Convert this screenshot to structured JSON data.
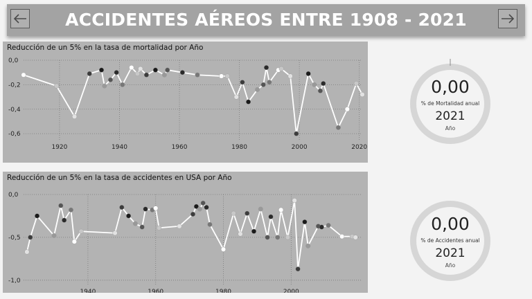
{
  "header": {
    "title": "ACCIDENTES AÉREOS ENTRE 1908 - 2021",
    "prev_icon": "arrow-left-icon",
    "next_icon": "arrow-right-icon"
  },
  "chart_data": [
    {
      "type": "line",
      "title": "Reducción de un 5% en la tasa de mortalidad por Año",
      "xlabel": "",
      "ylabel": "",
      "xlim": [
        1908,
        2021
      ],
      "ylim": [
        -0.65,
        0.0
      ],
      "xticks": [
        1920,
        1940,
        1960,
        1980,
        2000,
        2020
      ],
      "yticks": [
        0.0,
        -0.2,
        -0.4,
        -0.6
      ],
      "ytick_labels": [
        "0,0",
        "-0,2",
        "-0,4",
        "-0,6"
      ],
      "grid": true,
      "x": [
        1908,
        1919,
        1925,
        1930,
        1934,
        1935,
        1937,
        1939,
        1941,
        1944,
        1946,
        1947,
        1949,
        1952,
        1955,
        1956,
        1961,
        1966,
        1974,
        1976,
        1979,
        1981,
        1983,
        1986,
        1988,
        1989,
        1990,
        1993,
        1994,
        1997,
        1999,
        2003,
        2005,
        2007,
        2008,
        2013,
        2016,
        2019,
        2021
      ],
      "y": [
        -0.12,
        -0.21,
        -0.46,
        -0.11,
        -0.08,
        -0.21,
        -0.16,
        -0.1,
        -0.2,
        -0.06,
        -0.11,
        -0.07,
        -0.12,
        -0.08,
        -0.12,
        -0.08,
        -0.1,
        -0.12,
        -0.13,
        -0.13,
        -0.3,
        -0.18,
        -0.34,
        -0.24,
        -0.2,
        -0.06,
        -0.18,
        -0.08,
        -0.07,
        -0.13,
        -0.6,
        -0.11,
        -0.2,
        -0.25,
        -0.19,
        -0.55,
        -0.4,
        -0.19,
        -0.28
      ]
    },
    {
      "type": "line",
      "title": "Reducción de un 5% en la tasa de accidentes en USA por Año",
      "xlabel": "",
      "ylabel": "",
      "xlim": [
        1921,
        2021
      ],
      "ylim": [
        -1.05,
        0.0
      ],
      "xticks": [
        1940,
        1960,
        1980,
        2000
      ],
      "yticks": [
        0.0,
        -0.5,
        -1.0
      ],
      "ytick_labels": [
        "0,0",
        "-0,5",
        "-1,0"
      ],
      "grid": true,
      "x": [
        1922,
        1923,
        1925,
        1930,
        1932,
        1933,
        1935,
        1936,
        1938,
        1948,
        1950,
        1952,
        1954,
        1956,
        1957,
        1959,
        1960,
        1961,
        1967,
        1971,
        1972,
        1973,
        1974,
        1975,
        1976,
        1980,
        1983,
        1985,
        1987,
        1989,
        1991,
        1993,
        1994,
        1996,
        1997,
        1999,
        2001,
        2002,
        2004,
        2005,
        2008,
        2009,
        2011,
        2015,
        2018,
        2019
      ],
      "y": [
        -0.67,
        -0.5,
        -0.25,
        -0.48,
        -0.13,
        -0.3,
        -0.18,
        -0.55,
        -0.43,
        -0.45,
        -0.15,
        -0.25,
        -0.34,
        -0.38,
        -0.17,
        -0.18,
        -0.16,
        -0.39,
        -0.37,
        -0.23,
        -0.14,
        -0.17,
        -0.1,
        -0.15,
        -0.35,
        -0.64,
        -0.22,
        -0.46,
        -0.22,
        -0.43,
        -0.17,
        -0.5,
        -0.26,
        -0.5,
        -0.18,
        -0.5,
        -0.07,
        -0.87,
        -0.32,
        -0.6,
        -0.37,
        -0.38,
        -0.36,
        -0.49,
        -0.49,
        -0.5
      ]
    }
  ],
  "kpis": [
    {
      "value": "0,00",
      "label": "% de Mortalidad anual",
      "year": "2021",
      "year_label": "Año"
    },
    {
      "value": "0,00",
      "label": "% de Accidentes anual",
      "year": "2021",
      "year_label": "Año"
    }
  ],
  "colors": {
    "header_bg": "#a3a3a3",
    "panel_bg": "#b3b3b3",
    "line": "#ffffff",
    "grid": "#7a7a7a",
    "gauge_track": "#d6d6d6",
    "gauge_inner": "#f3f3f3"
  }
}
